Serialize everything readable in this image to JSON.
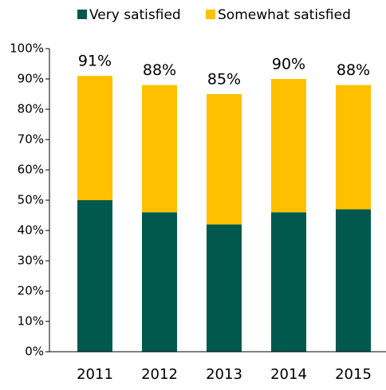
{
  "chart_data": {
    "type": "stacked_bar",
    "categories": [
      "2011",
      "2012",
      "2013",
      "2014",
      "2015"
    ],
    "series": [
      {
        "name": "Very satisfied",
        "color": "#00594c",
        "values": [
          50,
          46,
          42,
          46,
          47
        ]
      },
      {
        "name": "Somewhat satisfied",
        "color": "#ffc000",
        "values": [
          41,
          42,
          43,
          44,
          41
        ]
      }
    ],
    "total_labels": [
      "91%",
      "88%",
      "85%",
      "90%",
      "88%"
    ],
    "ylim": [
      0,
      100
    ],
    "yticks": [
      {
        "value": 0,
        "label": "0%"
      },
      {
        "value": 10,
        "label": "10%"
      },
      {
        "value": 20,
        "label": "20%"
      },
      {
        "value": 30,
        "label": "30%"
      },
      {
        "value": 40,
        "label": "40%"
      },
      {
        "value": 50,
        "label": "50%"
      },
      {
        "value": 60,
        "label": "60%"
      },
      {
        "value": 70,
        "label": "70%"
      },
      {
        "value": 80,
        "label": "80%"
      },
      {
        "value": 90,
        "label": "90%"
      },
      {
        "value": 100,
        "label": "100%"
      }
    ],
    "grid": false,
    "legend": "top"
  }
}
